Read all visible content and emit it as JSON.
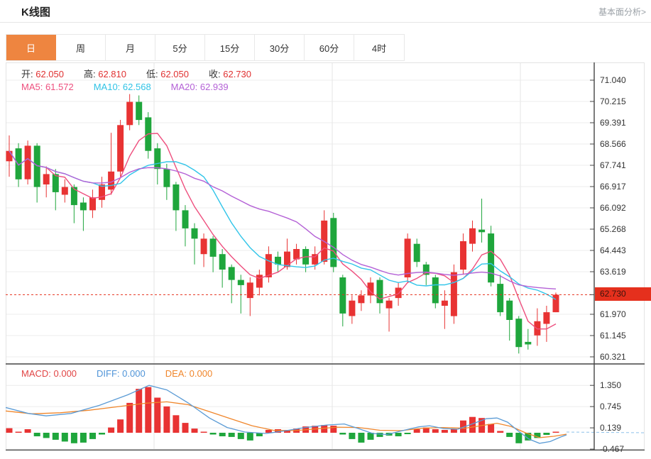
{
  "header": {
    "title": "K线图",
    "link_label": "基本面分析>"
  },
  "tabs": [
    {
      "label": "日",
      "active": true
    },
    {
      "label": "周",
      "active": false
    },
    {
      "label": "月",
      "active": false
    },
    {
      "label": "5分",
      "active": false
    },
    {
      "label": "15分",
      "active": false
    },
    {
      "label": "30分",
      "active": false
    },
    {
      "label": "60分",
      "active": false
    },
    {
      "label": "4时",
      "active": false
    }
  ],
  "info_rows": {
    "ohlc": [
      {
        "label": "开:",
        "value": "62.050"
      },
      {
        "label": "高:",
        "value": "62.810"
      },
      {
        "label": "低:",
        "value": "62.050"
      },
      {
        "label": "收:",
        "value": "62.730"
      }
    ],
    "ma": [
      {
        "label": "MA5:",
        "value": "61.572",
        "color": "#ee4f7e"
      },
      {
        "label": "MA10:",
        "value": "62.568",
        "color": "#2fc3e6"
      },
      {
        "label": "MA20:",
        "value": "62.939",
        "color": "#b461d6"
      }
    ],
    "macd": [
      {
        "label": "MACD:",
        "value": "0.000",
        "color": "#e14444"
      },
      {
        "label": "DIFF:",
        "value": "0.000",
        "color": "#4f94d8"
      },
      {
        "label": "DEA:",
        "value": "0.000",
        "color": "#f0862b"
      }
    ]
  },
  "chart_data": {
    "type": "candlestick",
    "title": "K线图 (daily)",
    "main_pane": {
      "yticks": [
        71.04,
        70.215,
        69.391,
        68.566,
        67.741,
        66.917,
        66.092,
        65.268,
        64.443,
        63.619,
        61.97,
        61.145,
        60.321
      ],
      "ylim": [
        60.0,
        71.4
      ],
      "current_price": 62.73,
      "current_price_label": "62.730",
      "ma_periods": [
        5,
        10,
        20
      ],
      "candles_ohlc_note": "each item is [open, high, low, close]; close>=open renders red (up), else green (down)",
      "candles": [
        [
          67.9,
          68.9,
          67.3,
          68.3
        ],
        [
          68.4,
          68.6,
          66.9,
          67.2
        ],
        [
          67.2,
          68.7,
          67.0,
          68.5
        ],
        [
          68.5,
          68.6,
          66.3,
          66.9
        ],
        [
          67.0,
          67.7,
          66.5,
          67.4
        ],
        [
          67.4,
          67.6,
          66.0,
          66.7
        ],
        [
          66.6,
          67.2,
          66.3,
          66.9
        ],
        [
          66.9,
          67.0,
          65.5,
          66.2
        ],
        [
          66.3,
          66.5,
          65.2,
          66.0
        ],
        [
          66.0,
          66.8,
          65.7,
          66.5
        ],
        [
          66.4,
          67.3,
          66.1,
          67.0
        ],
        [
          66.8,
          69.0,
          66.6,
          67.5
        ],
        [
          67.5,
          69.5,
          67.3,
          69.3
        ],
        [
          69.3,
          70.5,
          69.1,
          70.2
        ],
        [
          70.2,
          70.45,
          69.3,
          69.5
        ],
        [
          69.6,
          69.8,
          68.0,
          68.3
        ],
        [
          68.4,
          68.6,
          67.0,
          67.6
        ],
        [
          67.6,
          67.8,
          66.4,
          66.9
        ],
        [
          67.0,
          67.1,
          65.2,
          66.0
        ],
        [
          66.0,
          66.2,
          64.6,
          65.3
        ],
        [
          65.3,
          65.5,
          63.9,
          64.9
        ],
        [
          64.3,
          65.1,
          63.8,
          64.9
        ],
        [
          64.9,
          65.0,
          63.6,
          64.2
        ],
        [
          64.3,
          64.5,
          63.0,
          63.7
        ],
        [
          63.8,
          63.9,
          62.4,
          63.3
        ],
        [
          63.3,
          63.5,
          62.0,
          63.1
        ],
        [
          62.6,
          63.4,
          61.9,
          63.2
        ],
        [
          63.0,
          63.7,
          62.7,
          63.5
        ],
        [
          63.4,
          64.6,
          63.2,
          64.3
        ],
        [
          64.2,
          64.4,
          63.6,
          63.9
        ],
        [
          63.8,
          64.9,
          63.7,
          64.4
        ],
        [
          64.1,
          64.7,
          63.9,
          64.5
        ],
        [
          64.5,
          64.6,
          63.6,
          63.9
        ],
        [
          63.9,
          64.6,
          63.7,
          64.3
        ],
        [
          64.0,
          66.0,
          63.9,
          65.6
        ],
        [
          65.7,
          65.9,
          63.6,
          63.8
        ],
        [
          63.4,
          63.5,
          61.5,
          62.0
        ],
        [
          61.9,
          62.7,
          61.6,
          62.5
        ],
        [
          62.4,
          62.9,
          62.1,
          62.7
        ],
        [
          62.7,
          63.4,
          62.4,
          63.2
        ],
        [
          63.3,
          63.4,
          62.0,
          62.4
        ],
        [
          62.2,
          62.6,
          61.3,
          62.5
        ],
        [
          62.6,
          63.2,
          62.3,
          63.0
        ],
        [
          63.4,
          65.1,
          63.2,
          64.9
        ],
        [
          64.7,
          64.9,
          63.8,
          64.0
        ],
        [
          63.9,
          64.0,
          63.1,
          63.5
        ],
        [
          63.4,
          63.5,
          62.2,
          62.4
        ],
        [
          62.3,
          62.9,
          61.4,
          62.5
        ],
        [
          61.9,
          63.9,
          61.6,
          63.6
        ],
        [
          63.7,
          65.1,
          63.5,
          64.8
        ],
        [
          64.7,
          65.6,
          64.4,
          65.3
        ],
        [
          65.25,
          66.45,
          64.75,
          65.15
        ],
        [
          65.1,
          65.4,
          63.05,
          63.2
        ],
        [
          63.15,
          63.5,
          61.9,
          62.05
        ],
        [
          62.5,
          62.6,
          60.95,
          61.75
        ],
        [
          61.8,
          61.9,
          60.45,
          60.7
        ],
        [
          60.9,
          61.4,
          60.6,
          60.8
        ],
        [
          61.15,
          62.2,
          60.75,
          61.7
        ],
        [
          61.6,
          62.3,
          60.9,
          62.05
        ],
        [
          62.05,
          62.81,
          62.05,
          62.73
        ]
      ]
    },
    "macd_pane": {
      "yticks": [
        1.35,
        0.745,
        0.139,
        -0.467
      ],
      "histogram_note": "one bar per candle; positive = red, negative = green",
      "histogram": [
        0.13,
        0.02,
        0.1,
        -0.1,
        -0.15,
        -0.2,
        -0.25,
        -0.3,
        -0.28,
        -0.18,
        -0.05,
        0.15,
        0.38,
        0.85,
        1.25,
        1.3,
        1.0,
        0.75,
        0.5,
        0.28,
        0.12,
        0.03,
        -0.05,
        -0.1,
        -0.12,
        -0.18,
        -0.22,
        -0.1,
        0.08,
        0.1,
        0.08,
        0.12,
        0.18,
        0.2,
        0.22,
        0.2,
        -0.05,
        -0.18,
        -0.28,
        -0.2,
        -0.12,
        -0.08,
        -0.1,
        -0.04,
        0.1,
        0.15,
        0.1,
        0.08,
        0.1,
        0.35,
        0.45,
        0.42,
        0.25,
        0.05,
        -0.12,
        -0.3,
        -0.22,
        -0.15,
        -0.06,
        0.0
      ],
      "diff_path": [
        [
          8,
          0.72
        ],
        [
          40,
          0.55
        ],
        [
          65,
          0.48
        ],
        [
          100,
          0.55
        ],
        [
          140,
          0.78
        ],
        [
          180,
          1.08
        ],
        [
          210,
          1.35
        ],
        [
          235,
          1.22
        ],
        [
          265,
          0.85
        ],
        [
          295,
          0.42
        ],
        [
          320,
          0.15
        ],
        [
          345,
          0.02
        ],
        [
          375,
          -0.02
        ],
        [
          400,
          0.05
        ],
        [
          430,
          0.15
        ],
        [
          460,
          0.22
        ],
        [
          485,
          0.25
        ],
        [
          505,
          0.12
        ],
        [
          525,
          -0.02
        ],
        [
          545,
          -0.05
        ],
        [
          565,
          0.05
        ],
        [
          590,
          0.17
        ],
        [
          605,
          0.2
        ],
        [
          625,
          0.12
        ],
        [
          645,
          0.1
        ],
        [
          665,
          0.25
        ],
        [
          685,
          0.4
        ],
        [
          700,
          0.42
        ],
        [
          715,
          0.3
        ],
        [
          730,
          0.05
        ],
        [
          745,
          -0.18
        ],
        [
          760,
          -0.3
        ],
        [
          775,
          -0.25
        ],
        [
          790,
          -0.12
        ],
        [
          798,
          -0.06
        ]
      ],
      "dea_path": [
        [
          8,
          0.62
        ],
        [
          45,
          0.54
        ],
        [
          85,
          0.57
        ],
        [
          125,
          0.64
        ],
        [
          165,
          0.74
        ],
        [
          205,
          0.84
        ],
        [
          235,
          0.88
        ],
        [
          265,
          0.8
        ],
        [
          295,
          0.6
        ],
        [
          325,
          0.4
        ],
        [
          355,
          0.2
        ],
        [
          385,
          0.07
        ],
        [
          415,
          0.06
        ],
        [
          445,
          0.11
        ],
        [
          475,
          0.16
        ],
        [
          505,
          0.15
        ],
        [
          535,
          0.07
        ],
        [
          565,
          0.06
        ],
        [
          595,
          0.13
        ],
        [
          625,
          0.15
        ],
        [
          655,
          0.13
        ],
        [
          680,
          0.21
        ],
        [
          700,
          0.27
        ],
        [
          720,
          0.18
        ],
        [
          740,
          0.0
        ],
        [
          760,
          -0.14
        ],
        [
          780,
          -0.1
        ],
        [
          798,
          -0.04
        ]
      ],
      "zero_extension_value": 0.0
    },
    "colors": {
      "up": "#e83333",
      "down": "#1fa63c",
      "ma5": "#ee4f7e",
      "ma10": "#32c5e9",
      "ma20": "#b461d6",
      "diff": "#5b9bd5",
      "dea": "#f0862b",
      "price_line": "#e5301d",
      "price_badge_bg": "#e5301d",
      "grid": "#ececec",
      "axis": "#444444",
      "tab_active_bg": "#ee8540"
    }
  }
}
